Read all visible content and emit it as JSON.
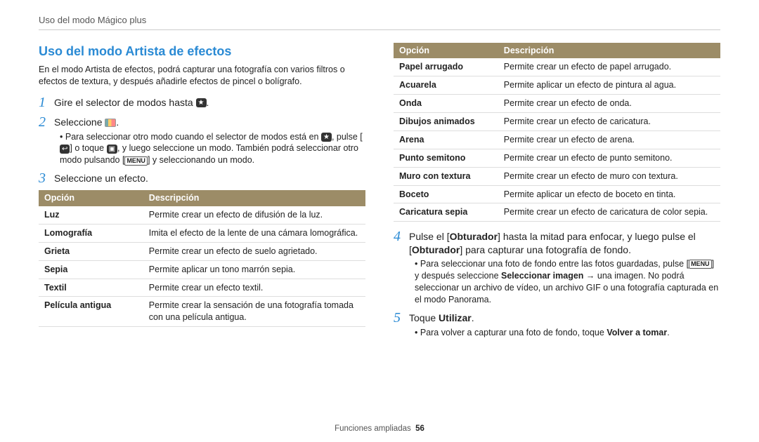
{
  "header": {
    "text": "Uso del modo Mágico plus"
  },
  "title": "Uso del modo Artista de efectos",
  "intro": "En el modo Artista de efectos, podrá capturar una fotografía con varios filtros o efectos de textura, y después añadirle efectos de pincel o bolígrafo.",
  "step1": {
    "num": "1",
    "prefix": "Gire el selector de modos hasta ",
    "suffix": "."
  },
  "step2": {
    "num": "2",
    "prefix": "Seleccione ",
    "suffix": "."
  },
  "step2_bullet": "Para seleccionar otro modo cuando el selector de modos está en @IC1@, pulse [@IC2@] o toque @IC3@, y luego seleccione un modo. También podrá seleccionar otro modo pulsando [@MENU@] y seleccionando un modo.",
  "step3": {
    "num": "3",
    "text": "Seleccione un efecto."
  },
  "table_header_option": "Opción",
  "table_header_desc": "Descripción",
  "table1": [
    {
      "opt": "Luz",
      "desc": "Permite crear un efecto de difusión de la luz."
    },
    {
      "opt": "Lomografía",
      "desc": "Imita el efecto de la lente de una cámara lomográfica."
    },
    {
      "opt": "Grieta",
      "desc": "Permite crear un efecto de suelo agrietado."
    },
    {
      "opt": "Sepia",
      "desc": "Permite aplicar un tono marrón sepia."
    },
    {
      "opt": "Textil",
      "desc": "Permite crear un efecto textil."
    },
    {
      "opt": "Película antigua",
      "desc": "Permite crear la sensación de una fotografía tomada con una película antigua."
    }
  ],
  "table2": [
    {
      "opt": "Papel arrugado",
      "desc": "Permite crear un efecto de papel arrugado."
    },
    {
      "opt": "Acuarela",
      "desc": "Permite aplicar un efecto de pintura al agua."
    },
    {
      "opt": "Onda",
      "desc": "Permite crear un efecto de onda."
    },
    {
      "opt": "Dibujos animados",
      "desc": "Permite crear un efecto de caricatura."
    },
    {
      "opt": "Arena",
      "desc": "Permite crear un efecto de arena."
    },
    {
      "opt": "Punto semitono",
      "desc": "Permite crear un efecto de punto semitono."
    },
    {
      "opt": "Muro con textura",
      "desc": "Permite crear un efecto de muro con textura."
    },
    {
      "opt": "Boceto",
      "desc": "Permite aplicar un efecto de boceto en tinta."
    },
    {
      "opt": "Caricatura sepia",
      "desc": "Permite crear un efecto de caricatura de color sepia."
    }
  ],
  "step4": {
    "num": "4",
    "p1": "Pulse el [",
    "b1": "Obturador",
    "p2": "] hasta la mitad para enfocar, y luego pulse el [",
    "b2": "Obturador",
    "p3": "] para capturar una fotografía de fondo."
  },
  "step4_bullet": "Para seleccionar una foto de fondo entre las fotos guardadas, pulse [@MENU@] y después seleccione @B1@Seleccionar imagen@/B1@ → una imagen. No podrá seleccionar un archivo de vídeo, un archivo GIF o una fotografía capturada en el modo Panorama.",
  "step5": {
    "num": "5",
    "p1": "Toque ",
    "b1": "Utilizar",
    "p2": "."
  },
  "step5_bullet": "Para volver a capturar una foto de fondo, toque @B1@Volver a tomar@/B1@.",
  "footer": {
    "section": "Funciones ampliadas",
    "page": "56"
  }
}
